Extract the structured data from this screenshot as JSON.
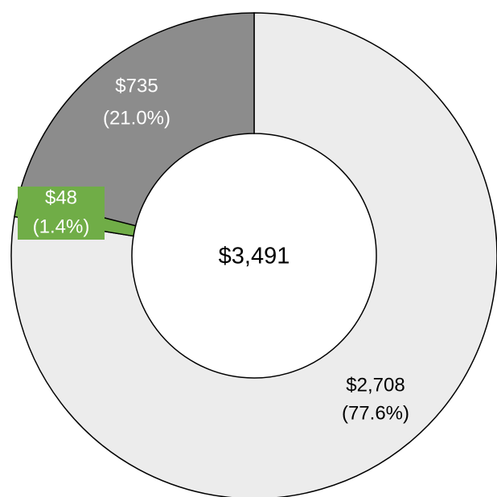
{
  "chart_data": {
    "type": "donut",
    "categories": [
      null,
      null,
      null
    ],
    "series": [
      {
        "name": null,
        "values": [
          2708,
          48,
          735
        ],
        "value_labels": [
          "$2,708",
          "$48",
          "$735"
        ],
        "percent_labels": [
          "(77.6%)",
          "(1.4%)",
          "(21.0%)"
        ],
        "colors": [
          "#ececec",
          "#70ad47",
          "#8c8c8c"
        ],
        "label_colors": [
          "#000000",
          "#ffffff",
          "#ffffff"
        ]
      }
    ],
    "center_label": "$3,491"
  }
}
